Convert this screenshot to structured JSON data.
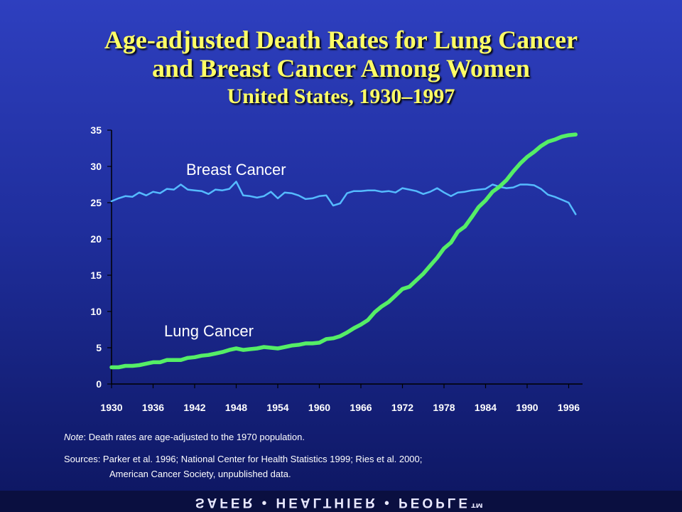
{
  "title": {
    "line1": "Age-adjusted Death Rates for Lung Cancer",
    "line2": "and Breast Cancer Among Women",
    "line3": "United States, 1930–1997"
  },
  "note": {
    "label": "Note",
    "text": ": Death rates are age-adjusted to the 1970 population."
  },
  "sources": {
    "line1": "Sources: Parker et al. 1996; National Center for Health Statistics 1999; Ries et al. 2000;",
    "line2": "American Cancer Society, unpublished data."
  },
  "footer": {
    "text": "SAFER • HEALTHIER • PEOPLE™"
  },
  "colors": {
    "lung": "#55ee66",
    "breast": "#55bbff",
    "background": "#2435b0"
  },
  "chart_data": {
    "type": "line",
    "title": "",
    "xlabel": "",
    "ylabel": "",
    "xlim": [
      1930,
      1998
    ],
    "ylim": [
      0,
      35
    ],
    "yticks": [
      0,
      5,
      10,
      15,
      20,
      25,
      30,
      35
    ],
    "xticks": [
      1930,
      1936,
      1942,
      1948,
      1954,
      1960,
      1966,
      1972,
      1978,
      1984,
      1990,
      1996
    ],
    "grid": false,
    "legend": "none",
    "series": [
      {
        "name": "Breast Cancer",
        "x": [
          1930,
          1931,
          1932,
          1933,
          1934,
          1935,
          1936,
          1937,
          1938,
          1939,
          1940,
          1941,
          1942,
          1943,
          1944,
          1945,
          1946,
          1947,
          1948,
          1949,
          1950,
          1951,
          1952,
          1953,
          1954,
          1955,
          1956,
          1957,
          1958,
          1959,
          1960,
          1961,
          1962,
          1963,
          1964,
          1965,
          1966,
          1967,
          1968,
          1969,
          1970,
          1971,
          1972,
          1973,
          1974,
          1975,
          1976,
          1977,
          1978,
          1979,
          1980,
          1981,
          1982,
          1983,
          1984,
          1985,
          1986,
          1987,
          1988,
          1989,
          1990,
          1991,
          1992,
          1993,
          1994,
          1995,
          1996,
          1997
        ],
        "values": [
          25.2,
          25.6,
          25.9,
          25.8,
          26.4,
          26.0,
          26.5,
          26.3,
          26.9,
          26.8,
          27.5,
          26.8,
          26.7,
          26.6,
          26.2,
          26.8,
          26.7,
          26.9,
          27.9,
          26.0,
          25.9,
          25.7,
          25.9,
          26.5,
          25.6,
          26.4,
          26.3,
          26.0,
          25.5,
          25.6,
          25.9,
          26.0,
          24.6,
          24.9,
          26.3,
          26.6,
          26.6,
          26.7,
          26.7,
          26.5,
          26.6,
          26.4,
          27.0,
          26.8,
          26.6,
          26.2,
          26.5,
          27.0,
          26.4,
          25.9,
          26.4,
          26.5,
          26.7,
          26.8,
          26.9,
          27.5,
          27.2,
          27.0,
          27.1,
          27.5,
          27.5,
          27.4,
          26.9,
          26.1,
          25.8,
          25.4,
          25.0,
          23.4
        ]
      },
      {
        "name": "Lung Cancer",
        "x": [
          1930,
          1931,
          1932,
          1933,
          1934,
          1935,
          1936,
          1937,
          1938,
          1939,
          1940,
          1941,
          1942,
          1943,
          1944,
          1945,
          1946,
          1947,
          1948,
          1949,
          1950,
          1951,
          1952,
          1953,
          1954,
          1955,
          1956,
          1957,
          1958,
          1959,
          1960,
          1961,
          1962,
          1963,
          1964,
          1965,
          1966,
          1967,
          1968,
          1969,
          1970,
          1971,
          1972,
          1973,
          1974,
          1975,
          1976,
          1977,
          1978,
          1979,
          1980,
          1981,
          1982,
          1983,
          1984,
          1985,
          1986,
          1987,
          1988,
          1989,
          1990,
          1991,
          1992,
          1993,
          1994,
          1995,
          1996,
          1997
        ],
        "values": [
          2.3,
          2.3,
          2.5,
          2.5,
          2.6,
          2.8,
          3.0,
          3.0,
          3.3,
          3.3,
          3.3,
          3.6,
          3.7,
          3.9,
          4.0,
          4.2,
          4.4,
          4.7,
          4.9,
          4.7,
          4.8,
          4.9,
          5.1,
          5.0,
          4.9,
          5.1,
          5.3,
          5.4,
          5.6,
          5.6,
          5.7,
          6.2,
          6.3,
          6.6,
          7.1,
          7.7,
          8.2,
          8.8,
          9.9,
          10.7,
          11.3,
          12.2,
          13.1,
          13.4,
          14.3,
          15.2,
          16.3,
          17.4,
          18.7,
          19.5,
          21.0,
          21.7,
          23.0,
          24.4,
          25.3,
          26.5,
          27.2,
          28.1,
          29.3,
          30.4,
          31.3,
          32.0,
          32.8,
          33.4,
          33.7,
          34.1,
          34.3,
          34.4
        ]
      }
    ]
  }
}
